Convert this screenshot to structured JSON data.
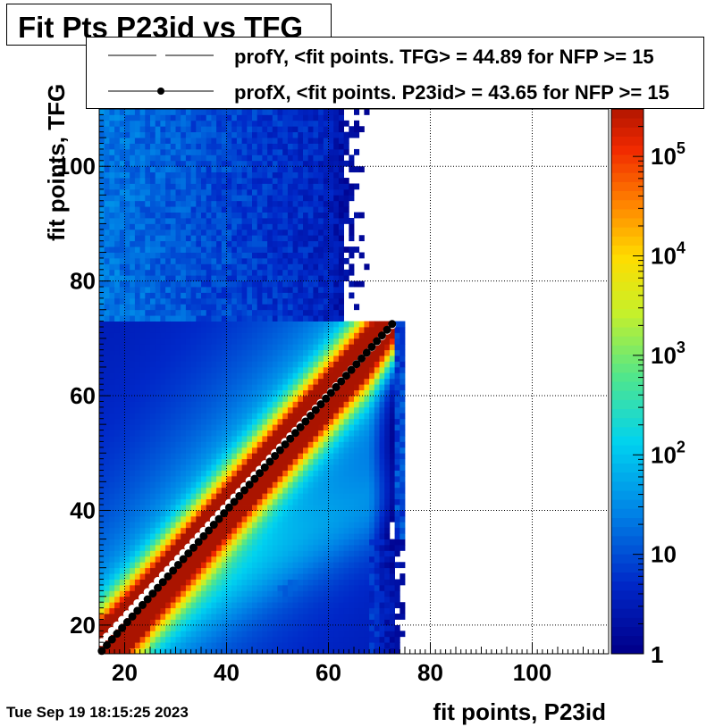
{
  "chart_data": {
    "type": "heatmap",
    "title": "Fit Pts P23id vs TFG",
    "xlabel": "fit points, P23id",
    "ylabel": "fit points, TFG",
    "xlim": [
      15,
      115
    ],
    "ylim": [
      15,
      110
    ],
    "x_ticks": [
      20,
      40,
      60,
      80,
      100
    ],
    "y_ticks": [
      20,
      40,
      60,
      80,
      100
    ],
    "grid": true,
    "z_scale": "log",
    "z_range": [
      1,
      300000
    ],
    "colorbar": {
      "ticks": [
        {
          "base": "1",
          "exp": ""
        },
        {
          "base": "10",
          "exp": ""
        },
        {
          "base": "10",
          "exp": "2"
        },
        {
          "base": "10",
          "exp": "3"
        },
        {
          "base": "10",
          "exp": "4"
        },
        {
          "base": "10",
          "exp": "5"
        }
      ],
      "tick_values": [
        1,
        10,
        100,
        1000,
        10000,
        100000
      ]
    },
    "legend": {
      "placement": "top",
      "entries": [
        {
          "label": "profY, <fit points. TFG> =   44.89 for NFP >= 15",
          "marker": "open-circle"
        },
        {
          "label": "profX, <fit points. P23id> =   43.65 for NFP >= 15",
          "marker": "filled-circle"
        }
      ]
    },
    "series": [
      {
        "name": "profY",
        "x_range": [
          15,
          73
        ],
        "slope": 0.97,
        "intercept": 2.0,
        "marker_color": "#ffffff"
      },
      {
        "name": "profX",
        "x_range": [
          15,
          73
        ],
        "slope": 1.0,
        "intercept": 0.0,
        "marker_color": "#000000"
      }
    ]
  },
  "timestamp": "Tue Sep 19 18:15:25 2023"
}
